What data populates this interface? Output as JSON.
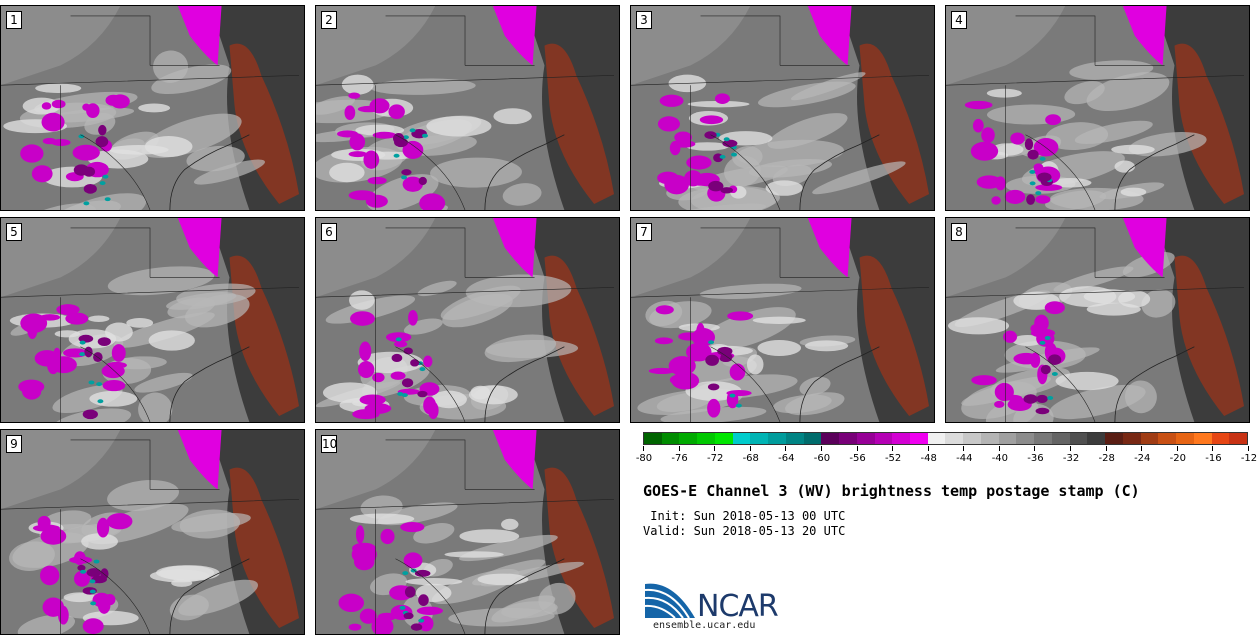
{
  "members": [
    "1",
    "2",
    "3",
    "4",
    "5",
    "6",
    "7",
    "8",
    "9",
    "10"
  ],
  "colorbar": {
    "colors": [
      "#006400",
      "#008c00",
      "#00aa00",
      "#00c800",
      "#00e600",
      "#00cccc",
      "#00b4b4",
      "#009c9c",
      "#008484",
      "#006c6c",
      "#5a005a",
      "#780078",
      "#960096",
      "#b400b4",
      "#d200d2",
      "#f000f0",
      "#f0f0f0",
      "#dcdcdc",
      "#c8c8c8",
      "#b4b4b4",
      "#a0a0a0",
      "#8c8c8c",
      "#787878",
      "#646464",
      "#505050",
      "#3c3c3c",
      "#5a1e14",
      "#782814",
      "#a03c14",
      "#c85014",
      "#e66414",
      "#ff781e",
      "#e64614",
      "#c83214"
    ],
    "tick_labels": [
      "-80",
      "-76",
      "-72",
      "-68",
      "-64",
      "-60",
      "-56",
      "-52",
      "-48",
      "-44",
      "-40",
      "-36",
      "-32",
      "-28",
      "-24",
      "-20",
      "-16",
      "-12"
    ]
  },
  "title": "GOES-E Channel 3 (WV) brightness temp postage stamp (C)",
  "init_line": " Init: Sun 2018-05-13 00 UTC",
  "valid_line": "Valid: Sun 2018-05-13 20 UTC",
  "logo": {
    "text": "NCAR",
    "site": "ensemble.ucar.edu",
    "brand_color": "#1d3a6b"
  }
}
